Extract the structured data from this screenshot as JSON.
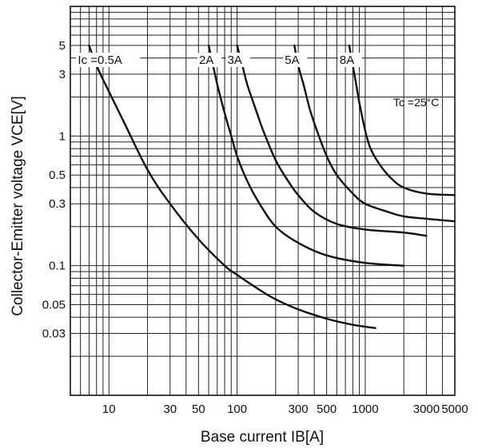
{
  "chart_data": {
    "type": "line",
    "title": "",
    "xlabel": "Base current   IB[A]",
    "ylabel": "Collector-Emitter voltage VCE[V]",
    "x_scale": "log",
    "y_scale": "log",
    "xlim": [
      0.005,
      5
    ],
    "ylim": [
      0.01,
      10
    ],
    "grid": true,
    "x_tick_labels": [
      {
        "value": 0.01,
        "label": "10"
      },
      {
        "value": 0.03,
        "label": "30"
      },
      {
        "value": 0.05,
        "label": "50"
      },
      {
        "value": 0.1,
        "label": "100"
      },
      {
        "value": 0.3,
        "label": "300"
      },
      {
        "value": 0.5,
        "label": "500"
      },
      {
        "value": 1,
        "label": "1000"
      },
      {
        "value": 3,
        "label": "3000"
      },
      {
        "value": 5,
        "label": "5000"
      }
    ],
    "y_tick_labels": [
      {
        "value": 5,
        "label": "5"
      },
      {
        "value": 3,
        "label": "3"
      },
      {
        "value": 1,
        "label": "1"
      },
      {
        "value": 0.5,
        "label": "0.5"
      },
      {
        "value": 0.3,
        "label": "0.3"
      },
      {
        "value": 0.1,
        "label": "0.1"
      },
      {
        "value": 0.05,
        "label": "0.05"
      },
      {
        "value": 0.03,
        "label": "0.03"
      }
    ],
    "annotation": "Tc =25°C",
    "series": [
      {
        "name": "Ic =0.5A",
        "x": [
          0.007,
          0.008,
          0.01,
          0.013,
          0.02,
          0.03,
          0.05,
          0.08,
          0.1,
          0.15,
          0.2,
          0.3,
          0.5,
          0.8,
          1.2
        ],
        "y": [
          5,
          3.5,
          2.2,
          1.3,
          0.55,
          0.3,
          0.16,
          0.1,
          0.085,
          0.065,
          0.055,
          0.046,
          0.039,
          0.035,
          0.033
        ]
      },
      {
        "name": "2A",
        "x": [
          0.06,
          0.065,
          0.07,
          0.08,
          0.09,
          0.1,
          0.12,
          0.15,
          0.2,
          0.3,
          0.5,
          1,
          2
        ],
        "y": [
          5,
          3.5,
          2.5,
          1.5,
          1.0,
          0.7,
          0.45,
          0.3,
          0.2,
          0.15,
          0.12,
          0.105,
          0.1
        ]
      },
      {
        "name": "3A",
        "x": [
          0.1,
          0.11,
          0.12,
          0.14,
          0.16,
          0.2,
          0.25,
          0.3,
          0.4,
          0.6,
          1,
          2,
          3
        ],
        "y": [
          5,
          3.5,
          2.5,
          1.6,
          1.1,
          0.65,
          0.45,
          0.35,
          0.26,
          0.21,
          0.19,
          0.18,
          0.17
        ]
      },
      {
        "name": "5A",
        "x": [
          0.28,
          0.3,
          0.33,
          0.37,
          0.42,
          0.5,
          0.6,
          0.8,
          1,
          1.5,
          2,
          3,
          5
        ],
        "y": [
          5,
          3.5,
          2.5,
          1.6,
          1.1,
          0.7,
          0.5,
          0.36,
          0.3,
          0.26,
          0.24,
          0.23,
          0.22
        ]
      },
      {
        "name": "8A",
        "x": [
          0.75,
          0.8,
          0.85,
          0.9,
          1.0,
          1.1,
          1.3,
          1.6,
          2,
          3,
          5
        ],
        "y": [
          5,
          3.5,
          2.5,
          1.8,
          1.1,
          0.8,
          0.6,
          0.47,
          0.4,
          0.36,
          0.35
        ]
      }
    ]
  }
}
